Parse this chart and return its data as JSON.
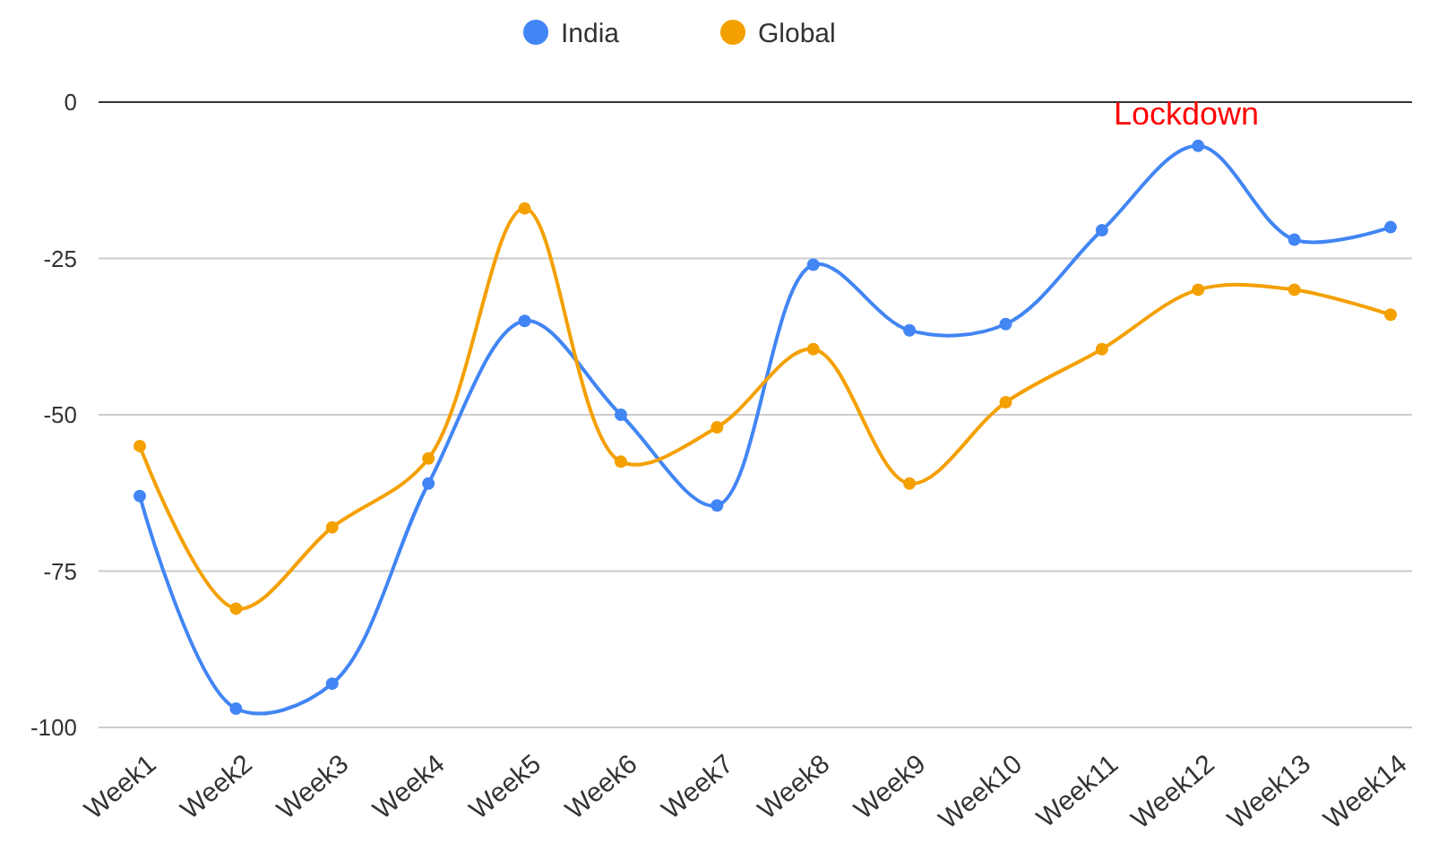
{
  "chart_data": {
    "type": "line",
    "categories": [
      "Week1",
      "Week2",
      "Week3",
      "Week4",
      "Week5",
      "Week6",
      "Week7",
      "Week8",
      "Week9",
      "Week10",
      "Week11",
      "Week12",
      "Week13",
      "Week14"
    ],
    "series": [
      {
        "name": "India",
        "color": "#4285f4",
        "values": [
          -63,
          -97,
          -93,
          -61,
          -35,
          -50,
          -64.5,
          -26,
          -36.5,
          -35.5,
          -20.5,
          -7,
          -22,
          -20
        ]
      },
      {
        "name": "Global",
        "color": "#f4a000",
        "values": [
          -55,
          -81,
          -68,
          -57,
          -17,
          -57.5,
          -52,
          -39.5,
          -61,
          -48,
          -39.5,
          -30,
          -30,
          -34
        ]
      }
    ],
    "ylim": [
      -100,
      0
    ],
    "yticks": [
      0,
      -25,
      -50,
      -75,
      -100
    ],
    "grid": "y",
    "legend": "top",
    "marker": "circle",
    "line_style": "solid",
    "annotations": [
      "Lockdown"
    ]
  }
}
